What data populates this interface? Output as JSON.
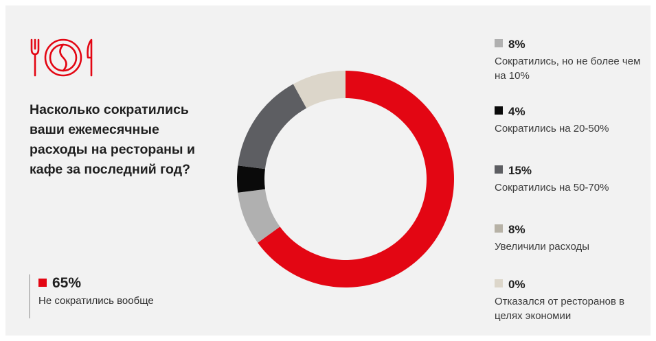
{
  "colors": {
    "accent_red": "#e30613",
    "background": "#f2f2f2",
    "icon_stroke": "#e30613"
  },
  "icon": "fork-plate-knife-icon",
  "question": "Насколько сократились ваши ежемесячные расходы на рестораны и кафе за последний год?",
  "main_stat": {
    "value": "65%",
    "label": "Не сократились вообще",
    "color": "#e30613"
  },
  "chart_data": {
    "type": "pie",
    "style": "donut",
    "title": "Насколько сократились ваши ежемесячные расходы на рестораны и кафе за последний год?",
    "start": "top",
    "direction": "clockwise",
    "slices": [
      {
        "label": "Не сократились вообще",
        "value": 65,
        "display": "65%",
        "color": "#e30613"
      },
      {
        "label": "Сократились, но не более чем на 10%",
        "value": 8,
        "display": "8%",
        "color": "#b0b0b0"
      },
      {
        "label": "Сократились на 20-50%",
        "value": 4,
        "display": "4%",
        "color": "#0a0a0a"
      },
      {
        "label": "Сократились на 50-70%",
        "value": 15,
        "display": "15%",
        "color": "#5d5e62"
      },
      {
        "label": "Увеличили расходы",
        "value": 8,
        "display": "8%",
        "color": "#dcd6ca"
      },
      {
        "label": "Отказался от ресторанов в целях экономии",
        "value": 0,
        "display": "0%",
        "color": "#e4dfd5"
      }
    ]
  },
  "legend": [
    {
      "pct": "8%",
      "desc": "Сократились, но не более чем на 10%",
      "color": "#b0b0b0"
    },
    {
      "pct": "4%",
      "desc": "Сократились на 20-50%",
      "color": "#0a0a0a"
    },
    {
      "pct": "15%",
      "desc": "Сократились на 50-70%",
      "color": "#5d5e62"
    },
    {
      "pct": "8%",
      "desc": "Увеличили расходы",
      "color": "#b7b2a6"
    },
    {
      "pct": "0%",
      "desc": "Отказался от ресторанов в целях экономии",
      "color": "#dcd6ca"
    }
  ]
}
